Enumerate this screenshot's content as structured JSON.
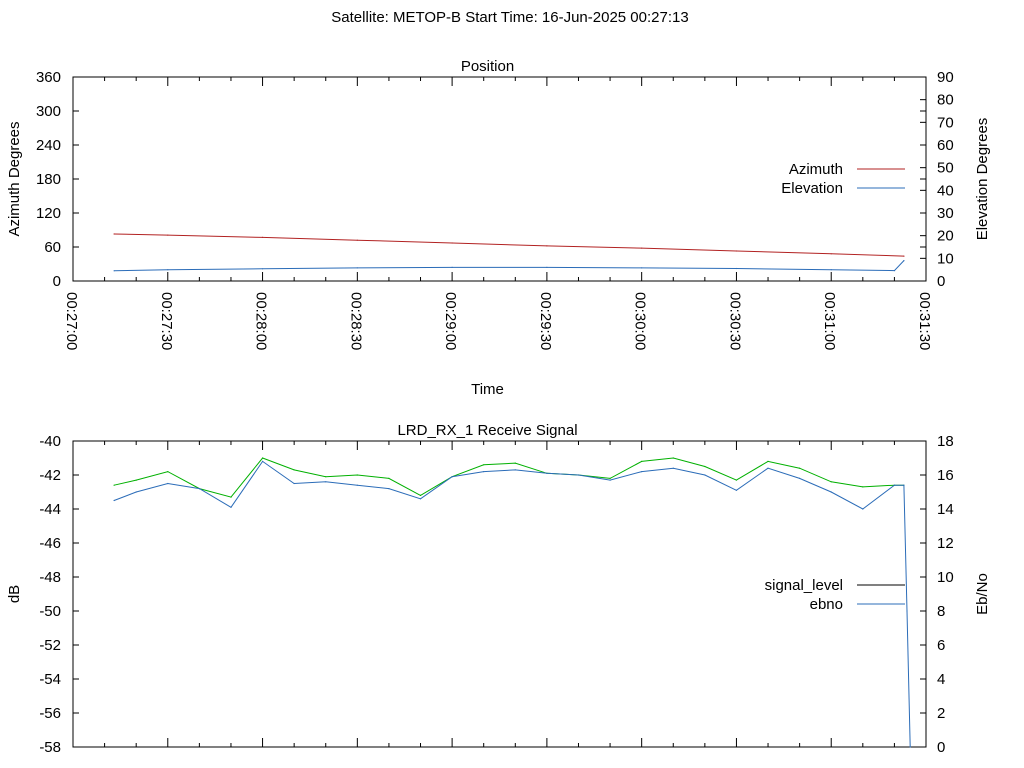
{
  "page_title": "Satellite: METOP-B    Start Time: 16-Jun-2025 00:27:13",
  "chart_data": [
    {
      "type": "line",
      "title": "Position",
      "xlabel": "Time",
      "ylabel": "Azimuth Degrees",
      "y2label": "Elevation Degrees",
      "x_ticks": [
        "00:27:00",
        "00:27:30",
        "00:28:00",
        "00:28:30",
        "00:29:00",
        "00:29:30",
        "00:30:00",
        "00:30:30",
        "00:31:00",
        "00:31:30"
      ],
      "y_ticks": [
        "0",
        "60",
        "120",
        "180",
        "240",
        "300",
        "360"
      ],
      "y2_ticks": [
        "0",
        "10",
        "20",
        "30",
        "40",
        "50",
        "60",
        "70",
        "80",
        "90"
      ],
      "ylim": [
        0,
        360
      ],
      "y2lim": [
        0,
        90
      ],
      "grid": false,
      "legend_position": "right",
      "series": [
        {
          "name": "Azimuth",
          "axis": "y",
          "color": "#b22222",
          "x": [
            "00:27:13",
            "00:27:30",
            "00:28:00",
            "00:28:30",
            "00:29:00",
            "00:29:30",
            "00:30:00",
            "00:30:30",
            "00:31:00",
            "00:31:23"
          ],
          "values": [
            83,
            81,
            77,
            72,
            67,
            62,
            58,
            53,
            48,
            44
          ]
        },
        {
          "name": "Elevation",
          "axis": "y2",
          "color": "#2b6cb8",
          "x": [
            "00:27:13",
            "00:27:30",
            "00:28:00",
            "00:28:30",
            "00:29:00",
            "00:29:30",
            "00:30:00",
            "00:30:30",
            "00:31:00",
            "00:31:20",
            "00:31:23"
          ],
          "values": [
            4.5,
            5.0,
            5.4,
            5.8,
            6.0,
            6.0,
            5.8,
            5.5,
            5.0,
            4.6,
            9
          ]
        }
      ]
    },
    {
      "type": "line",
      "title": "LRD_RX_1 Receive Signal",
      "ylabel": "dB",
      "y2label": "Eb/No",
      "y_ticks": [
        "-40",
        "-42",
        "-44",
        "-46",
        "-48",
        "-50",
        "-52",
        "-54",
        "-56",
        "-58"
      ],
      "y2_ticks": [
        "0",
        "2",
        "4",
        "6",
        "8",
        "10",
        "12",
        "14",
        "16",
        "18"
      ],
      "ylim": [
        -58,
        -40
      ],
      "y2lim": [
        0,
        18
      ],
      "grid": false,
      "legend_position": "right",
      "series": [
        {
          "name": "signal_level",
          "axis": "y",
          "color": "#00b000",
          "legend_color": "#000000",
          "x": [
            "00:27:13",
            "00:27:20",
            "00:27:30",
            "00:27:40",
            "00:27:50",
            "00:28:00",
            "00:28:10",
            "00:28:20",
            "00:28:30",
            "00:28:40",
            "00:28:50",
            "00:29:00",
            "00:29:10",
            "00:29:20",
            "00:29:30",
            "00:29:40",
            "00:29:50",
            "00:30:00",
            "00:30:10",
            "00:30:20",
            "00:30:30",
            "00:30:40",
            "00:30:50",
            "00:31:00",
            "00:31:10",
            "00:31:20",
            "00:31:23"
          ],
          "values": [
            -42.6,
            -42.3,
            -41.8,
            -42.8,
            -43.3,
            -41.0,
            -41.7,
            -42.1,
            -42.0,
            -42.2,
            -43.2,
            -42.1,
            -41.4,
            -41.3,
            -41.9,
            -42.0,
            -42.2,
            -41.2,
            -41.0,
            -41.5,
            -42.3,
            -41.2,
            -41.6,
            -42.4,
            -42.7,
            -42.6,
            -42.6
          ]
        },
        {
          "name": "ebno",
          "axis": "y2",
          "color": "#2b6cb8",
          "x": [
            "00:27:13",
            "00:27:20",
            "00:27:30",
            "00:27:40",
            "00:27:50",
            "00:28:00",
            "00:28:10",
            "00:28:20",
            "00:28:30",
            "00:28:40",
            "00:28:50",
            "00:29:00",
            "00:29:10",
            "00:29:20",
            "00:29:30",
            "00:29:40",
            "00:29:50",
            "00:30:00",
            "00:30:10",
            "00:30:20",
            "00:30:30",
            "00:30:40",
            "00:30:50",
            "00:31:00",
            "00:31:10",
            "00:31:20",
            "00:31:23",
            "00:31:24",
            "00:31:25"
          ],
          "values": [
            14.5,
            15.0,
            15.5,
            15.2,
            14.1,
            16.8,
            15.5,
            15.6,
            15.4,
            15.2,
            14.6,
            15.9,
            16.2,
            16.3,
            16.1,
            16.0,
            15.7,
            16.2,
            16.4,
            16.0,
            15.1,
            16.4,
            15.8,
            15.0,
            14.0,
            15.4,
            15.4,
            8,
            0
          ]
        }
      ]
    }
  ]
}
